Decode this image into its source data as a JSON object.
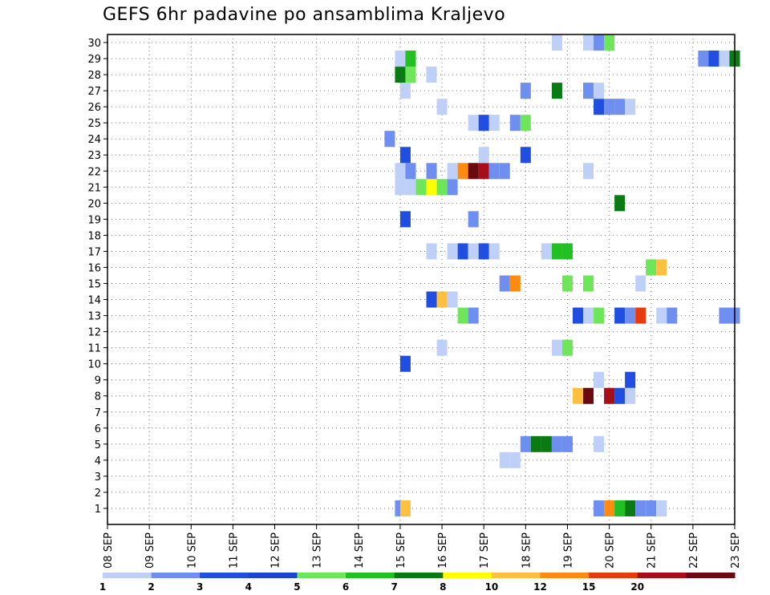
{
  "chart_data": {
    "type": "heatmap",
    "title": "GEFS 6hr padavine po ansamblima Kraljevo",
    "xlabel": "",
    "ylabel": "",
    "x_tick_labels": [
      "08 SEP",
      "09 SEP",
      "10 SEP",
      "11 SEP",
      "12 SEP",
      "13 SEP",
      "14 SEP",
      "15 SEP",
      "16 SEP",
      "17 SEP",
      "18 SEP",
      "19 SEP",
      "20 SEP",
      "21 SEP",
      "22 SEP",
      "23 SEP"
    ],
    "y_tick_labels": [
      "1",
      "2",
      "3",
      "4",
      "5",
      "6",
      "7",
      "8",
      "9",
      "10",
      "11",
      "12",
      "13",
      "14",
      "15",
      "16",
      "17",
      "18",
      "19",
      "20",
      "21",
      "22",
      "23",
      "24",
      "25",
      "26",
      "27",
      "28",
      "29",
      "30"
    ],
    "x_units": "6-hour steps since 08 SEP 00Z",
    "xlim": [
      0,
      60
    ],
    "ylim": [
      0,
      30
    ],
    "grid": true,
    "colorbar": {
      "levels": [
        "1",
        "2",
        "3",
        "4",
        "5",
        "6",
        "7",
        "8",
        "10",
        "12",
        "15",
        "20"
      ],
      "colors": [
        "#bfd0f8",
        "#6f8ff0",
        "#1f4ee0",
        "#1c45d8",
        "#6ee65a",
        "#22c022",
        "#0a7a12",
        "#ffff00",
        "#ffc040",
        "#ff8a10",
        "#e83a10",
        "#a80e18",
        "#6a0a10"
      ]
    },
    "cells": [
      [
        28,
        1,
        "#6f8ff0"
      ],
      [
        28.5,
        1,
        "#ffc040"
      ],
      [
        47,
        1,
        "#6f8ff0"
      ],
      [
        48,
        1,
        "#ff8a10"
      ],
      [
        49,
        1,
        "#22c022"
      ],
      [
        50,
        1,
        "#0a7a12"
      ],
      [
        51,
        1,
        "#6f8ff0"
      ],
      [
        52,
        1,
        "#6f8ff0"
      ],
      [
        53,
        1,
        "#bfd0f8"
      ],
      [
        38,
        4,
        "#bfd0f8"
      ],
      [
        39,
        4,
        "#bfd0f8"
      ],
      [
        40,
        5,
        "#6f8ff0"
      ],
      [
        41,
        5,
        "#0a7a12"
      ],
      [
        42,
        5,
        "#0a7a12"
      ],
      [
        43,
        5,
        "#6f8ff0"
      ],
      [
        44,
        5,
        "#6f8ff0"
      ],
      [
        47,
        5,
        "#bfd0f8"
      ],
      [
        45,
        8,
        "#ffc040"
      ],
      [
        46,
        8,
        "#6a0a10"
      ],
      [
        48,
        8,
        "#a80e18"
      ],
      [
        49,
        8,
        "#1f4ee0"
      ],
      [
        50,
        8,
        "#bfd0f8"
      ],
      [
        47,
        9,
        "#bfd0f8"
      ],
      [
        50,
        9,
        "#1f4ee0"
      ],
      [
        28.5,
        10,
        "#1f4ee0"
      ],
      [
        32,
        11,
        "#bfd0f8"
      ],
      [
        43,
        11,
        "#bfd0f8"
      ],
      [
        44,
        11,
        "#6ee65a"
      ],
      [
        34,
        13,
        "#6ee65a"
      ],
      [
        35,
        13,
        "#6f8ff0"
      ],
      [
        45,
        13,
        "#1f4ee0"
      ],
      [
        46,
        13,
        "#bfd0f8"
      ],
      [
        47,
        13,
        "#6ee65a"
      ],
      [
        49,
        13,
        "#1f4ee0"
      ],
      [
        50,
        13,
        "#6f8ff0"
      ],
      [
        51,
        13,
        "#e83a10"
      ],
      [
        53,
        13,
        "#bfd0f8"
      ],
      [
        54,
        13,
        "#6f8ff0"
      ],
      [
        59,
        13,
        "#6f8ff0"
      ],
      [
        60,
        13,
        "#6f8ff0"
      ],
      [
        31,
        14,
        "#1f4ee0"
      ],
      [
        32,
        14,
        "#ffc040"
      ],
      [
        33,
        14,
        "#bfd0f8"
      ],
      [
        38,
        15,
        "#6f8ff0"
      ],
      [
        39,
        15,
        "#ff8a10"
      ],
      [
        44,
        15,
        "#6ee65a"
      ],
      [
        46,
        15,
        "#6ee65a"
      ],
      [
        51,
        15,
        "#bfd0f8"
      ],
      [
        52,
        16,
        "#6ee65a"
      ],
      [
        53,
        16,
        "#ffc040"
      ],
      [
        31,
        17,
        "#bfd0f8"
      ],
      [
        33,
        17,
        "#bfd0f8"
      ],
      [
        34,
        17,
        "#1f4ee0"
      ],
      [
        35,
        17,
        "#bfd0f8"
      ],
      [
        36,
        17,
        "#1f4ee0"
      ],
      [
        37,
        17,
        "#bfd0f8"
      ],
      [
        42,
        17,
        "#bfd0f8"
      ],
      [
        43,
        17,
        "#22c022"
      ],
      [
        44,
        17,
        "#22c022"
      ],
      [
        28.5,
        19,
        "#1f4ee0"
      ],
      [
        35,
        19,
        "#6f8ff0"
      ],
      [
        49,
        20,
        "#0a7a12"
      ],
      [
        28,
        21,
        "#bfd0f8"
      ],
      [
        29,
        21,
        "#bfd0f8"
      ],
      [
        30,
        21,
        "#6ee65a"
      ],
      [
        31,
        21,
        "#ffff00"
      ],
      [
        32,
        21,
        "#6ee65a"
      ],
      [
        33,
        21,
        "#6f8ff0"
      ],
      [
        28,
        22,
        "#bfd0f8"
      ],
      [
        29,
        22,
        "#6f8ff0"
      ],
      [
        31,
        22,
        "#6f8ff0"
      ],
      [
        33,
        22,
        "#bfd0f8"
      ],
      [
        34,
        22,
        "#ff8a10"
      ],
      [
        35,
        22,
        "#6a0a10"
      ],
      [
        36,
        22,
        "#a80e18"
      ],
      [
        37,
        22,
        "#6f8ff0"
      ],
      [
        38,
        22,
        "#6f8ff0"
      ],
      [
        46,
        22,
        "#bfd0f8"
      ],
      [
        28.5,
        23,
        "#1f4ee0"
      ],
      [
        36,
        23,
        "#bfd0f8"
      ],
      [
        40,
        23,
        "#1f4ee0"
      ],
      [
        27,
        24,
        "#6f8ff0"
      ],
      [
        35,
        25,
        "#bfd0f8"
      ],
      [
        36,
        25,
        "#1f4ee0"
      ],
      [
        37,
        25,
        "#bfd0f8"
      ],
      [
        39,
        25,
        "#6f8ff0"
      ],
      [
        40,
        25,
        "#6ee65a"
      ],
      [
        32,
        26,
        "#bfd0f8"
      ],
      [
        47,
        26,
        "#1f4ee0"
      ],
      [
        48,
        26,
        "#6f8ff0"
      ],
      [
        49,
        26,
        "#6f8ff0"
      ],
      [
        50,
        26,
        "#bfd0f8"
      ],
      [
        28.5,
        27,
        "#bfd0f8"
      ],
      [
        40,
        27,
        "#6f8ff0"
      ],
      [
        43,
        27,
        "#0a7a12"
      ],
      [
        46,
        27,
        "#6f8ff0"
      ],
      [
        47,
        27,
        "#bfd0f8"
      ],
      [
        28,
        28,
        "#0a7a12"
      ],
      [
        29,
        28,
        "#6ee65a"
      ],
      [
        31,
        28,
        "#bfd0f8"
      ],
      [
        28,
        29,
        "#bfd0f8"
      ],
      [
        29,
        29,
        "#22c022"
      ],
      [
        57,
        29,
        "#6f8ff0"
      ],
      [
        58,
        29,
        "#1f4ee0"
      ],
      [
        59,
        29,
        "#bfd0f8"
      ],
      [
        60,
        29,
        "#0a7a12"
      ],
      [
        43,
        30,
        "#bfd0f8"
      ],
      [
        46,
        30,
        "#bfd0f8"
      ],
      [
        47,
        30,
        "#6f8ff0"
      ],
      [
        48,
        30,
        "#6ee65a"
      ]
    ]
  }
}
